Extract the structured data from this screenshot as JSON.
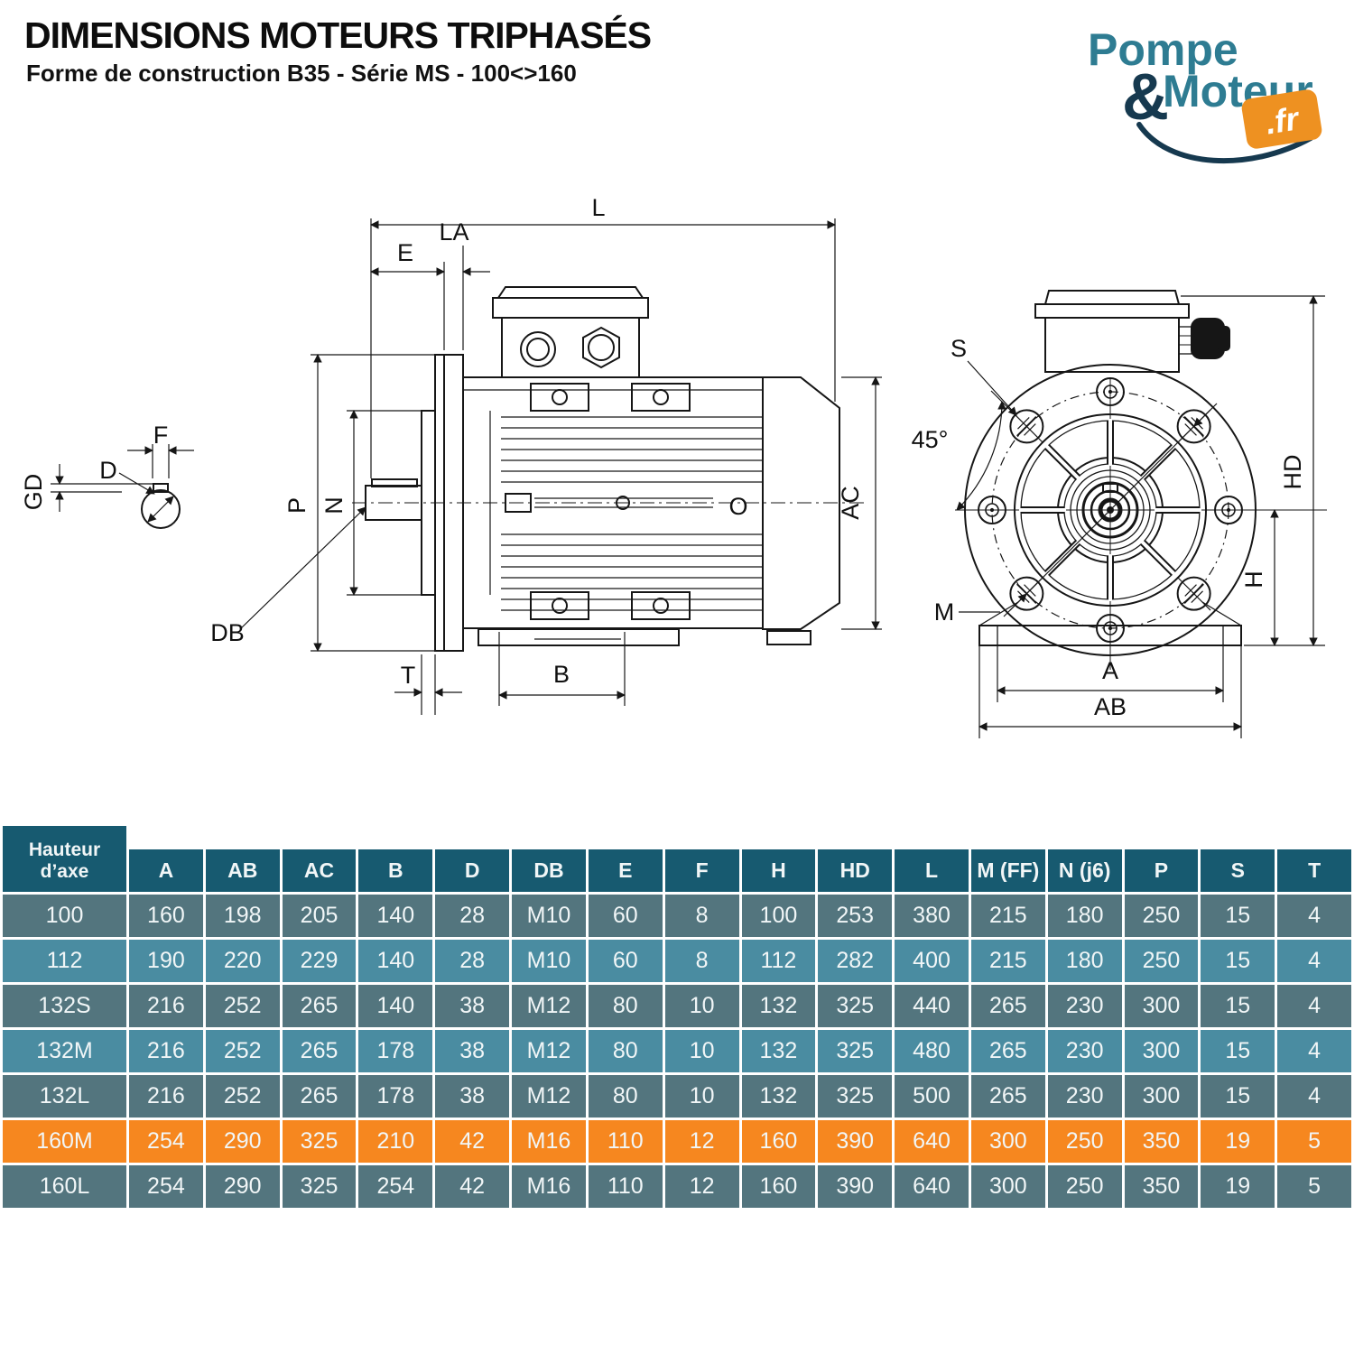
{
  "header": {
    "title": "DIMENSIONS MOTEURS TRIPHASÉS",
    "subtitle": "Forme de construction B35 - Série MS - 100<>160"
  },
  "logo": {
    "word1": "Pompe",
    "ampersand": "&",
    "word2": "Moteur",
    "tld": ".fr",
    "teal": "#2e7c92",
    "navy": "#16394f",
    "orange": "#ee9121"
  },
  "diagram": {
    "labels": {
      "L": "L",
      "E": "E",
      "LA": "LA",
      "P": "P",
      "N": "N",
      "DB": "DB",
      "T": "T",
      "B": "B",
      "AC": "AC",
      "O": "O",
      "F": "F",
      "GD": "GD",
      "D": "D",
      "S": "S",
      "angle45": "45°",
      "M": "M",
      "HD": "HD",
      "H": "H",
      "A": "A",
      "AB": "AB"
    }
  },
  "table": {
    "row_header_label": "Hauteur d’axe",
    "columns": [
      "A",
      "AB",
      "AC",
      "B",
      "D",
      "DB",
      "E",
      "F",
      "H",
      "HD",
      "L",
      "M (FF)",
      "N (j6)",
      "P",
      "S",
      "T"
    ],
    "rows": [
      {
        "name": "100",
        "highlight": false,
        "values": [
          "160",
          "198",
          "205",
          "140",
          "28",
          "M10",
          "60",
          "8",
          "100",
          "253",
          "380",
          "215",
          "180",
          "250",
          "15",
          "4"
        ]
      },
      {
        "name": "112",
        "highlight": false,
        "values": [
          "190",
          "220",
          "229",
          "140",
          "28",
          "M10",
          "60",
          "8",
          "112",
          "282",
          "400",
          "215",
          "180",
          "250",
          "15",
          "4"
        ]
      },
      {
        "name": "132S",
        "highlight": false,
        "values": [
          "216",
          "252",
          "265",
          "140",
          "38",
          "M12",
          "80",
          "10",
          "132",
          "325",
          "440",
          "265",
          "230",
          "300",
          "15",
          "4"
        ]
      },
      {
        "name": "132M",
        "highlight": false,
        "values": [
          "216",
          "252",
          "265",
          "178",
          "38",
          "M12",
          "80",
          "10",
          "132",
          "325",
          "480",
          "265",
          "230",
          "300",
          "15",
          "4"
        ]
      },
      {
        "name": "132L",
        "highlight": false,
        "values": [
          "216",
          "252",
          "265",
          "178",
          "38",
          "M12",
          "80",
          "10",
          "132",
          "325",
          "500",
          "265",
          "230",
          "300",
          "15",
          "4"
        ]
      },
      {
        "name": "160M",
        "highlight": true,
        "values": [
          "254",
          "290",
          "325",
          "210",
          "42",
          "M16",
          "110",
          "12",
          "160",
          "390",
          "640",
          "300",
          "250",
          "350",
          "19",
          "5"
        ]
      },
      {
        "name": "160L",
        "highlight": false,
        "values": [
          "254",
          "290",
          "325",
          "254",
          "42",
          "M16",
          "110",
          "12",
          "160",
          "390",
          "640",
          "300",
          "250",
          "350",
          "19",
          "5"
        ]
      }
    ],
    "colors": {
      "header": "#175a70",
      "row_dark": "#53757e",
      "row_light": "#4a8ca1",
      "highlight": "#f6871f"
    }
  }
}
